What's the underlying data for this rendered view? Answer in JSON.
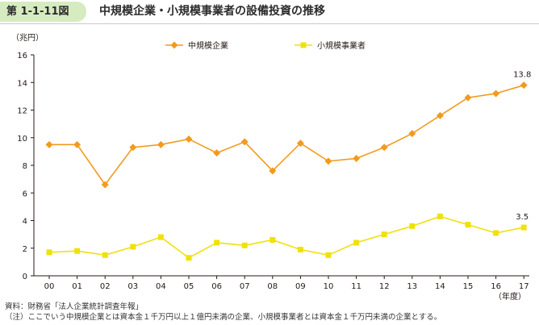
{
  "figure": {
    "number": "第 1-1-11図",
    "title": "中規模企業・小規模事業者の設備投資の推移"
  },
  "chart_data": {
    "type": "line",
    "ylabel": "（兆円）",
    "xlabel": "（年度）",
    "ylim": [
      0,
      16
    ],
    "yticks": [
      "0",
      "2",
      "4",
      "6",
      "8",
      "10",
      "12",
      "14",
      "16"
    ],
    "categories": [
      "00",
      "01",
      "02",
      "03",
      "04",
      "05",
      "06",
      "07",
      "08",
      "09",
      "10",
      "11",
      "12",
      "13",
      "14",
      "15",
      "16",
      "17"
    ],
    "legend_position": "top",
    "grid": false,
    "series": [
      {
        "name": "中規模企業",
        "color": "#f39a1e",
        "marker": "diamond",
        "values": [
          9.5,
          9.5,
          6.6,
          9.3,
          9.5,
          9.9,
          8.9,
          9.7,
          7.6,
          9.6,
          8.3,
          8.5,
          9.3,
          10.3,
          11.6,
          12.9,
          13.2,
          13.8
        ],
        "end_label": "13.8"
      },
      {
        "name": "小規模事業者",
        "color": "#f0e10a",
        "marker": "square",
        "values": [
          1.7,
          1.8,
          1.5,
          2.1,
          2.8,
          1.3,
          2.4,
          2.2,
          2.6,
          1.9,
          1.5,
          2.4,
          3.0,
          3.6,
          4.3,
          3.7,
          3.1,
          3.5
        ],
        "end_label": "3.5"
      }
    ]
  },
  "notes": {
    "source": "資料：財務省「法人企業統計調査年報」",
    "note": "（注）ここでいう中規模企業とは資本金１千万円以上１億円未満の企業、小規模事業者とは資本金１千万円未満の企業とする。"
  }
}
